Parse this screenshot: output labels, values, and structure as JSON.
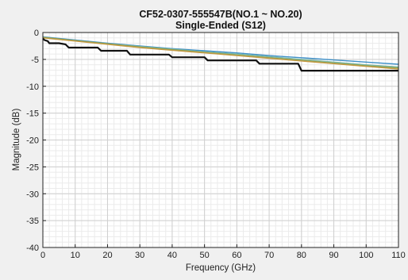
{
  "chart_data": {
    "type": "line",
    "title": "CF52-0307-555547B(NO.1 ~ NO.20)",
    "subtitle": "Single-Ended (S12)",
    "xlabel": "Frequency (GHz)",
    "ylabel": "Magnitude (dB)",
    "xlim": [
      0,
      110
    ],
    "ylim": [
      -40,
      0
    ],
    "x_ticks": [
      0,
      10,
      20,
      30,
      40,
      50,
      60,
      70,
      80,
      90,
      100,
      110
    ],
    "y_ticks": [
      0,
      -5,
      -10,
      -15,
      -20,
      -25,
      -30,
      -35,
      -40
    ],
    "grid": "major and minor",
    "series": [
      {
        "color": "#3d8fc7",
        "x": [
          0,
          10,
          20,
          30,
          40,
          50,
          60,
          70,
          80,
          90,
          100,
          110
        ],
        "y": [
          -0.8,
          -1.4,
          -2.0,
          -2.5,
          -3.0,
          -3.4,
          -3.8,
          -4.3,
          -4.7,
          -5.1,
          -5.5,
          -5.9
        ]
      },
      {
        "color": "#7bb8a6",
        "x": [
          0,
          10,
          20,
          30,
          40,
          50,
          60,
          70,
          80,
          90,
          100,
          110
        ],
        "y": [
          -0.9,
          -1.5,
          -2.1,
          -2.6,
          -3.1,
          -3.6,
          -4.0,
          -4.5,
          -5.0,
          -5.5,
          -6.0,
          -6.4
        ]
      },
      {
        "color": "#8fa04a",
        "x": [
          0,
          10,
          20,
          30,
          40,
          50,
          60,
          70,
          80,
          90,
          100,
          110
        ],
        "y": [
          -0.9,
          -1.5,
          -2.1,
          -2.7,
          -3.2,
          -3.7,
          -4.2,
          -4.7,
          -5.2,
          -5.7,
          -6.2,
          -6.6
        ]
      },
      {
        "color": "#c49a45",
        "x": [
          0,
          10,
          20,
          30,
          40,
          50,
          60,
          70,
          80,
          90,
          100,
          110
        ],
        "y": [
          -1.0,
          -1.6,
          -2.2,
          -2.8,
          -3.3,
          -3.8,
          -4.3,
          -4.8,
          -5.3,
          -5.8,
          -6.3,
          -6.8
        ]
      },
      {
        "color": "#111111",
        "x": [
          0,
          0.5,
          1.5,
          2,
          5,
          7,
          8,
          17,
          18,
          26,
          27,
          39,
          40,
          50,
          51,
          66,
          67,
          79,
          80,
          110
        ],
        "y": [
          -1.1,
          -1.4,
          -1.6,
          -2.0,
          -2.0,
          -2.2,
          -2.8,
          -2.8,
          -3.4,
          -3.4,
          -4.1,
          -4.1,
          -4.6,
          -4.6,
          -5.2,
          -5.2,
          -5.8,
          -5.8,
          -7.1,
          -7.1
        ]
      }
    ]
  }
}
